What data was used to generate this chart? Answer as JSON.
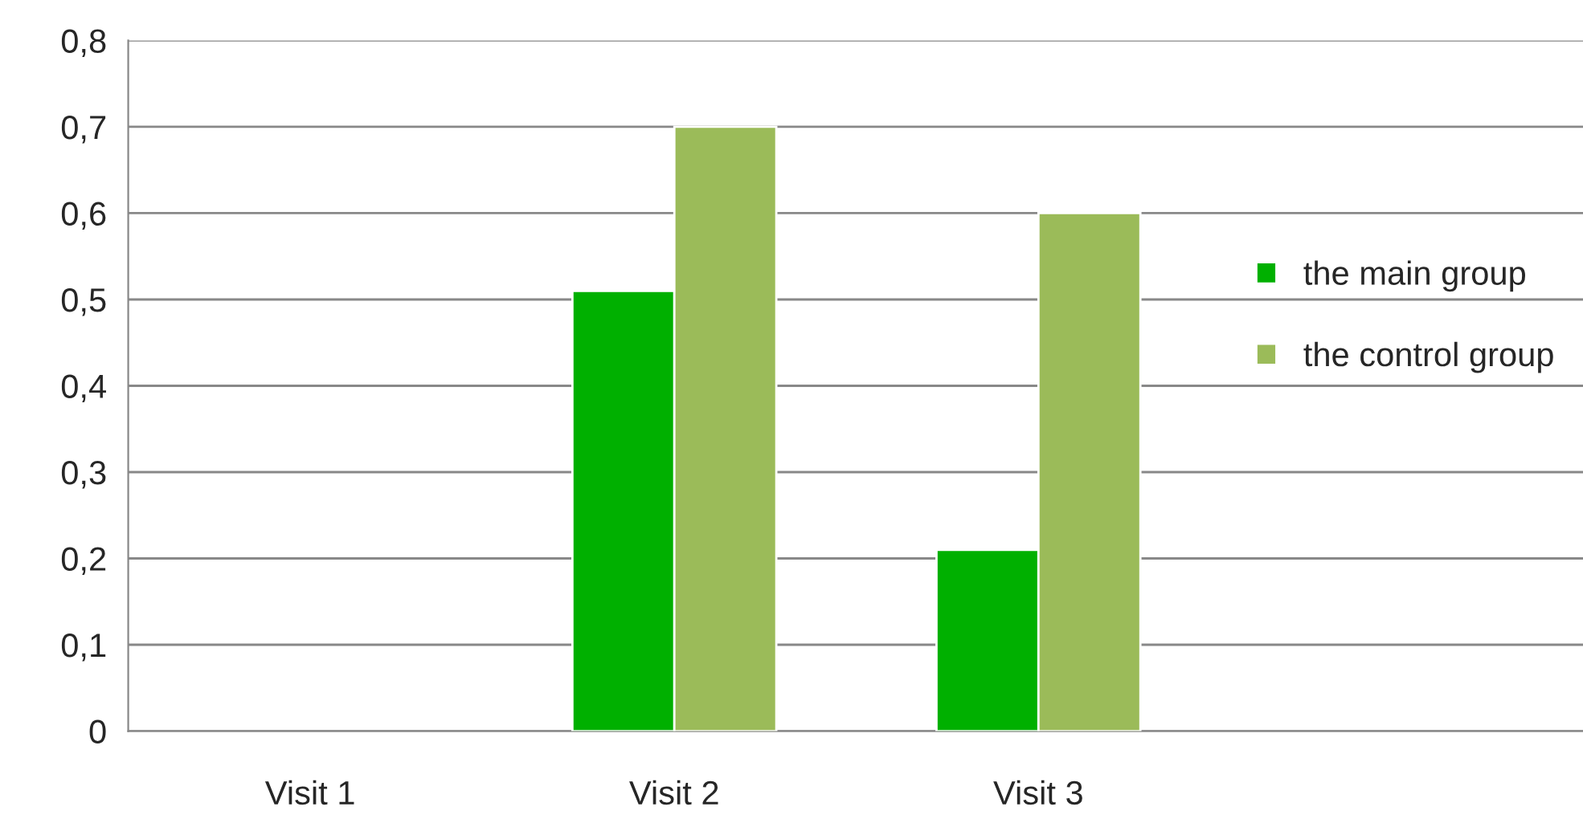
{
  "chart_data": {
    "type": "bar",
    "categories": [
      "Visit 1",
      "Visit 2",
      "Visit 3",
      null
    ],
    "series": [
      {
        "name": "the main group",
        "color": "#00b000",
        "values": [
          null,
          0.51,
          0.21,
          null
        ]
      },
      {
        "name": "the control group",
        "color": "#9bbb59",
        "values": [
          null,
          0.7,
          0.6,
          null
        ]
      }
    ],
    "ylim": [
      0,
      0.8
    ],
    "yticks": [
      {
        "value": 0,
        "label": "0"
      },
      {
        "value": 0.1,
        "label": "0,1"
      },
      {
        "value": 0.2,
        "label": "0,2"
      },
      {
        "value": 0.3,
        "label": "0,3"
      },
      {
        "value": 0.4,
        "label": "0,4"
      },
      {
        "value": 0.5,
        "label": "0,5"
      },
      {
        "value": 0.6,
        "label": "0,6"
      },
      {
        "value": 0.7,
        "label": "0,7"
      },
      {
        "value": 0.8,
        "label": "0,8"
      }
    ],
    "grid": "y",
    "legend": "right"
  }
}
